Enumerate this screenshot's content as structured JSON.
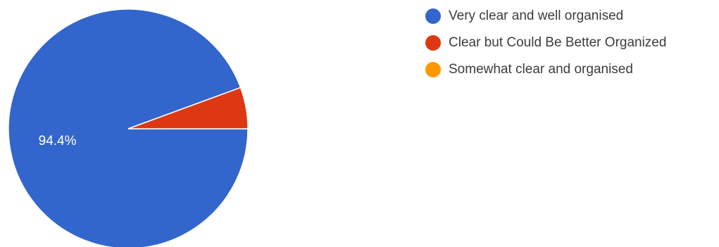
{
  "chart_data": {
    "type": "pie",
    "categories": [
      "Very clear and well organised",
      "Clear but Could Be Better Organized",
      "Somewhat clear and organised"
    ],
    "values": [
      94.4,
      5.6,
      0
    ],
    "slice_labels": [
      "94.4%",
      "",
      ""
    ],
    "colors": [
      "#3366cc",
      "#dc3912",
      "#ff9900"
    ],
    "legend_position": "right"
  }
}
